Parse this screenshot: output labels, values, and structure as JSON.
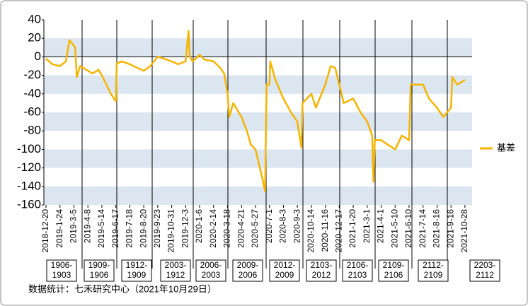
{
  "chart_data": {
    "type": "line",
    "series": [
      {
        "name": "基差",
        "color": "#f5b400",
        "x": [
          "2018-12-20",
          "2019-1-5",
          "2019-1-24",
          "2019-2-10",
          "2019-2-20",
          "2019-3-5",
          "2019-3-8",
          "2019-3-12",
          "2019-3-20",
          "2019-4-8",
          "2019-4-20",
          "2019-5-5",
          "2019-5-14",
          "2019-5-25",
          "2019-6-5",
          "2019-6-17",
          "2019-6-19",
          "2019-7-1",
          "2019-7-18",
          "2019-8-5",
          "2019-8-20",
          "2019-9-5",
          "2019-9-23",
          "2019-10-10",
          "2019-10-31",
          "2019-11-15",
          "2019-12-3",
          "2019-12-10",
          "2019-12-13",
          "2019-12-20",
          "2020-1-6",
          "2020-1-20",
          "2020-2-14",
          "2020-3-1",
          "2020-3-10",
          "2020-3-18",
          "2020-3-22",
          "2020-4-1",
          "2020-4-21",
          "2020-5-5",
          "2020-5-15",
          "2020-5-27",
          "2020-6-10",
          "2020-6-20",
          "2020-6-24",
          "2020-7-1",
          "2020-7-3",
          "2020-7-15",
          "2020-8-3",
          "2020-8-20",
          "2020-9-3",
          "2020-9-15",
          "2020-9-18",
          "2020-10-14",
          "2020-10-25",
          "2020-11-16",
          "2020-11-28",
          "2020-12-8",
          "2020-12-17",
          "2020-12-28",
          "2021-1-20",
          "2021-2-10",
          "2021-3-1",
          "2021-3-12",
          "2021-3-15",
          "2021-3-18",
          "2021-4-1",
          "2021-4-20",
          "2021-5-10",
          "2021-5-25",
          "2021-6-10",
          "2021-6-14",
          "2021-7-14",
          "2021-7-28",
          "2021-8-16",
          "2021-8-30",
          "2021-9-16",
          "2021-9-20",
          "2021-10-5",
          "2021-10-28"
        ],
        "values": [
          -2,
          -8,
          -10,
          -5,
          18,
          12,
          10,
          -22,
          -10,
          -15,
          -18,
          -14,
          -20,
          -30,
          -40,
          -48,
          -7,
          -5,
          -8,
          -12,
          -15,
          -10,
          0,
          -2,
          -5,
          -8,
          -5,
          28,
          0,
          -5,
          2,
          -3,
          -5,
          -12,
          -18,
          -40,
          -65,
          -50,
          -65,
          -80,
          -95,
          -100,
          -125,
          -145,
          -30,
          -30,
          -5,
          -25,
          -45,
          -60,
          -70,
          -98,
          -50,
          -40,
          -55,
          -30,
          -10,
          -12,
          -30,
          -50,
          -45,
          -60,
          -70,
          -85,
          -135,
          -90,
          -90,
          -95,
          -100,
          -85,
          -90,
          -30,
          -30,
          -45,
          -55,
          -65,
          -55,
          -22,
          -30,
          -25
        ]
      }
    ],
    "ylim": [
      -160,
      40
    ],
    "yticks": [
      -160,
      -140,
      -120,
      -100,
      -80,
      -60,
      -40,
      -20,
      0,
      20,
      40
    ],
    "xticks": [
      "2018-12-20",
      "2019-1-24",
      "2019-3-5",
      "2019-4-8",
      "2019-5-14",
      "2019-6-17",
      "2019-7-18",
      "2019-8-20",
      "2019-9-23",
      "2019-10-31",
      "2019-12-3",
      "2020-1-6",
      "2020-2-14",
      "2020-3-18",
      "2020-4-21",
      "2020-5-27",
      "2020-7-1",
      "2020-8-3",
      "2020-9-3",
      "2020-10-14",
      "2020-11-16",
      "2020-12-17",
      "2021-1-20",
      "2021-3-1",
      "2021-4-1",
      "2021-5-10",
      "2021-6-10",
      "2021-7-14",
      "2021-8-16",
      "2021-9-16",
      "2021-10-28"
    ],
    "contracts": [
      [
        "1906-",
        "1903"
      ],
      [
        "1909-",
        "1906"
      ],
      [
        "1912-",
        "1909"
      ],
      [
        "2003-",
        "1912"
      ],
      [
        "2006-",
        "2003"
      ],
      [
        "2009-",
        "2006"
      ],
      [
        "2012-",
        "2009"
      ],
      [
        "2103-",
        "2012"
      ],
      [
        "2106-",
        "2103"
      ],
      [
        "2109-",
        "2106"
      ],
      [
        "2112-",
        "2109"
      ],
      [
        "2203-",
        "2112"
      ]
    ],
    "source": "数据统计：七禾研究中心（2021年10月29日）"
  }
}
